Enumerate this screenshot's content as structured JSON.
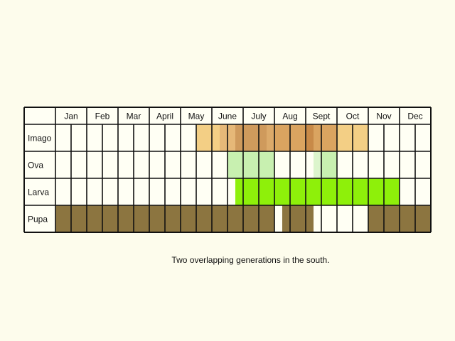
{
  "chart_data": {
    "type": "table",
    "description_units": "Each month is split into 4 quarter-month cells (48 cells per row).",
    "months": [
      "Jan",
      "Feb",
      "Mar",
      "April",
      "May",
      "June",
      "July",
      "Aug",
      "Sept",
      "Oct",
      "Nov",
      "Dec"
    ],
    "rows": [
      {
        "label": "Imago",
        "segments": [
          {
            "start": 18,
            "end": 21,
            "color": "#f3cf85"
          },
          {
            "start": 21,
            "end": 23,
            "color": "#e6b878"
          },
          {
            "start": 23,
            "end": 27,
            "color": "#cf9a5c"
          },
          {
            "start": 27,
            "end": 28,
            "color": "#dcaa6a"
          },
          {
            "start": 28,
            "end": 32,
            "color": "#daa460"
          },
          {
            "start": 32,
            "end": 33,
            "color": "#c88a48"
          },
          {
            "start": 33,
            "end": 36,
            "color": "#daa460"
          },
          {
            "start": 36,
            "end": 40,
            "color": "#f3cf85"
          }
        ]
      },
      {
        "label": "Ova",
        "segments": [
          {
            "start": 22,
            "end": 28,
            "color": "#c8f0b0"
          },
          {
            "start": 33,
            "end": 34,
            "color": "#dcf5cc"
          },
          {
            "start": 34,
            "end": 36,
            "color": "#c8f0b0"
          }
        ]
      },
      {
        "label": "Larva",
        "segments": [
          {
            "start": 23,
            "end": 44,
            "color": "#8ef00a"
          }
        ]
      },
      {
        "label": "Pupa",
        "segments": [
          {
            "start": 0,
            "end": 28,
            "color": "#8c7540"
          },
          {
            "start": 29,
            "end": 33,
            "color": "#8c7540"
          },
          {
            "start": 40,
            "end": 48,
            "color": "#8c7540"
          }
        ]
      }
    ],
    "caption": "Two overlapping generations in the south."
  }
}
